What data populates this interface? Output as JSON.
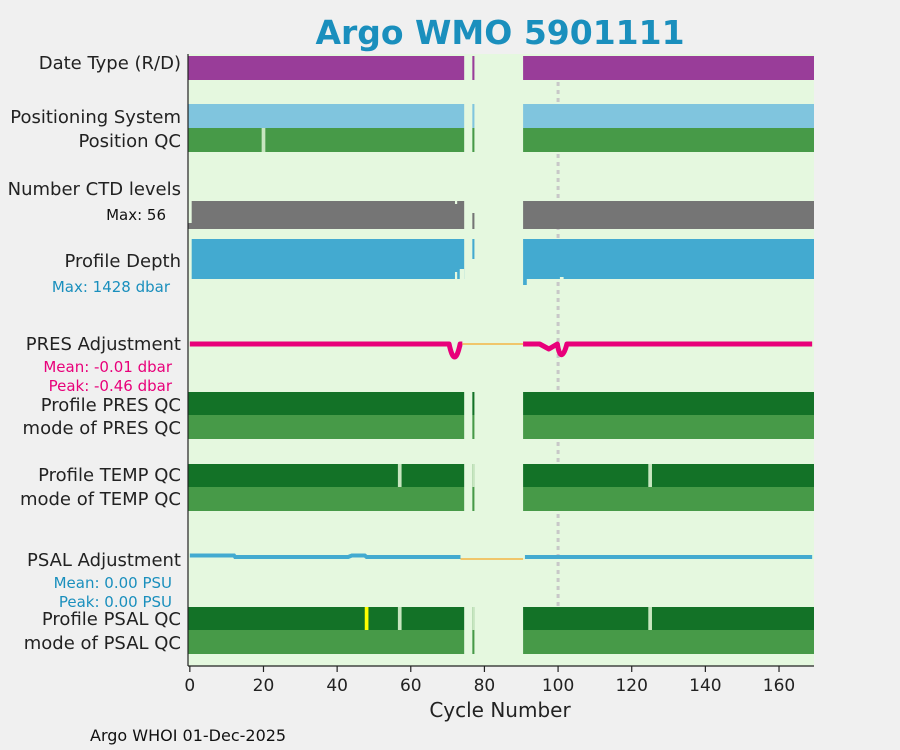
{
  "chart_data": {
    "type": "timeline",
    "title": "Argo WMO 5901111",
    "xlabel": "Cycle Number",
    "xlim": [
      -0.5,
      169.5
    ],
    "xticks": [
      0,
      20,
      40,
      60,
      80,
      100,
      120,
      140,
      160
    ],
    "reference_cycle": 100,
    "data_gap_cycles": [
      74.5,
      90.5
    ],
    "footer": "Argo WHOI 01-Dec-2025",
    "colors": {
      "title": "#1a8fbd",
      "plot_bg": "#e5f8df",
      "data_type": "#993d99",
      "positioning": "#80c5de",
      "qc_good": "#479a48",
      "qc_profile": "#137227",
      "ctd": "#757575",
      "depth": "#43aad0",
      "pres_adj": "#e8007a",
      "psal_adj": "#43aad0",
      "missing": "#c8e6c0",
      "flag_yellow": "#ffff00",
      "gap_line": "#f3b545",
      "ref_line": "#c8c8c8"
    },
    "rows": {
      "data_type": "Date Type (R/D)",
      "positioning": "Positioning System",
      "position_qc": "Position QC",
      "ctd_levels": "Number CTD levels",
      "ctd_max": "Max: 56",
      "profile_depth": "Profile Depth",
      "depth_max": "Max: 1428 dbar",
      "pres_adj": "PRES Adjustment",
      "pres_mean": "Mean: -0.01 dbar",
      "pres_peak": "Peak: -0.46 dbar",
      "profile_pres_qc": "Profile PRES QC",
      "mode_pres_qc": "mode of PRES QC",
      "profile_temp_qc": "Profile TEMP QC",
      "mode_temp_qc": "mode of TEMP QC",
      "psal_adj": "PSAL Adjustment",
      "psal_mean": "Mean: 0.00 PSU",
      "psal_peak": "Peak: 0.00 PSU",
      "profile_psal_qc": "Profile PSAL QC",
      "mode_psal_qc": "mode of PSAL QC"
    },
    "series": {
      "data_type": {
        "segments": [
          [
            -0.5,
            74.5
          ],
          [
            76.5,
            77.5
          ],
          [
            90.5,
            169.5
          ]
        ]
      },
      "positioning": {
        "segments": [
          [
            -0.5,
            74.5
          ],
          [
            76.5,
            77.5
          ],
          [
            90.5,
            169.5
          ]
        ]
      },
      "position_qc": {
        "segments": [
          [
            -0.5,
            74.5
          ],
          [
            76.5,
            77.5
          ],
          [
            90.5,
            169.5
          ]
        ],
        "flagged_cycles": [
          20
        ]
      },
      "ctd_levels": {
        "segments": [
          [
            -0.5,
            74.5
          ],
          [
            76.5,
            77.5
          ],
          [
            90.5,
            169.5
          ]
        ],
        "max_levels": 56
      },
      "profile_depth": {
        "segments": [
          [
            -0.5,
            74.5
          ],
          [
            76.5,
            77.5
          ],
          [
            90.5,
            169.5
          ]
        ],
        "max_dbar": 1428
      },
      "pres_adjustment": {
        "mean_dbar": -0.01,
        "peak_dbar": -0.46,
        "dips": [
          [
            72,
            -0.46
          ],
          [
            101,
            -0.38
          ]
        ]
      },
      "profile_pres_qc": {
        "segments": [
          [
            -0.5,
            74.5
          ],
          [
            76.5,
            77.5
          ],
          [
            90.5,
            169.5
          ]
        ]
      },
      "mode_pres_qc": {
        "segments": [
          [
            -0.5,
            74.5
          ],
          [
            76.5,
            77.5
          ],
          [
            90.5,
            169.5
          ]
        ]
      },
      "profile_temp_qc": {
        "segments": [
          [
            -0.5,
            74.5
          ],
          [
            76.5,
            77.5
          ],
          [
            90.5,
            169.5
          ]
        ],
        "flagged_cycles": [
          57,
          125
        ]
      },
      "mode_temp_qc": {
        "segments": [
          [
            -0.5,
            74.5
          ],
          [
            76.5,
            77.5
          ],
          [
            90.5,
            169.5
          ]
        ]
      },
      "psal_adjustment": {
        "mean_psu": 0.0,
        "peak_psu": 0.0
      },
      "profile_psal_qc": {
        "segments": [
          [
            -0.5,
            74.5
          ],
          [
            76.5,
            77.5
          ],
          [
            90.5,
            169.5
          ]
        ],
        "flagged_cycles": [
          57,
          125
        ],
        "bad_cycles": [
          48
        ]
      },
      "mode_psal_qc": {
        "segments": [
          [
            -0.5,
            74.5
          ],
          [
            76.5,
            77.5
          ],
          [
            90.5,
            169.5
          ]
        ]
      }
    }
  }
}
